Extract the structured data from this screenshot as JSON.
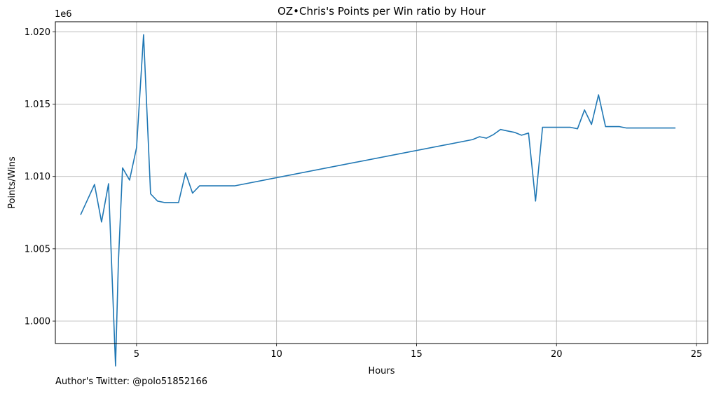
{
  "chart_data": {
    "type": "line",
    "title": "OZ•Chris's Points per Win ratio by Hour",
    "xlabel": "Hours",
    "ylabel": "Points/Wins",
    "y_offset_label": "1e6",
    "xlim": [
      2.1,
      25.4
    ],
    "ylim": [
      0.99845,
      1.0207
    ],
    "xticks": [
      5,
      10,
      15,
      20,
      25
    ],
    "xtick_labels": [
      "5",
      "10",
      "15",
      "20",
      "25"
    ],
    "yticks": [
      1.0,
      1.005,
      1.01,
      1.015,
      1.02
    ],
    "ytick_labels": [
      "1.000",
      "1.005",
      "1.010",
      "1.015",
      "1.020"
    ],
    "grid": true,
    "series": [
      {
        "color": "#1f77b4",
        "x": [
          3.0,
          3.5,
          3.75,
          4.0,
          4.25,
          4.35,
          4.5,
          4.75,
          5.0,
          5.25,
          5.5,
          5.75,
          6.0,
          6.25,
          6.5,
          6.75,
          7.0,
          7.25,
          7.5,
          7.75,
          8.0,
          8.25,
          8.5,
          17.0,
          17.25,
          17.5,
          17.75,
          18.0,
          18.25,
          18.5,
          18.75,
          19.0,
          19.25,
          19.5,
          19.75,
          20.0,
          20.25,
          20.5,
          20.75,
          21.0,
          21.25,
          21.5,
          21.75,
          22.0,
          22.25,
          22.5,
          22.75,
          23.0,
          23.25,
          23.5,
          23.75,
          24.0,
          24.25
        ],
        "y": [
          1.00735,
          1.00945,
          1.00685,
          1.0095,
          0.9969,
          1.004,
          1.0106,
          1.00975,
          1.012,
          1.0198,
          1.0088,
          1.0083,
          1.0082,
          1.0082,
          1.0082,
          1.01025,
          1.00885,
          1.00935,
          1.00935,
          1.00935,
          1.00935,
          1.00935,
          1.00935,
          1.01255,
          1.01275,
          1.01265,
          1.0129,
          1.01325,
          1.01315,
          1.01305,
          1.01285,
          1.013,
          1.0083,
          1.0134,
          1.0134,
          1.0134,
          1.0134,
          1.0134,
          1.0133,
          1.0146,
          1.0136,
          1.01565,
          1.01345,
          1.01345,
          1.01345,
          1.01335,
          1.01335,
          1.01335,
          1.01335,
          1.01335,
          1.01335,
          1.01335,
          1.01335
        ]
      }
    ]
  },
  "footer": {
    "credit": "Author's Twitter: @polo51852166"
  }
}
